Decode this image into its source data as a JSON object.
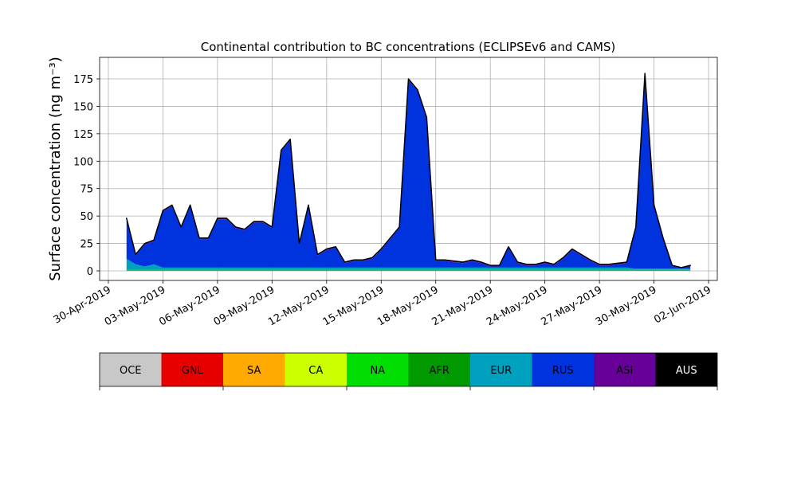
{
  "chart_data": {
    "type": "stacked_area",
    "title": "Continental contribution to BC concentrations (ECLIPSEv6 and CAMS)",
    "y_label": "Surface concentration (ng m⁻³)",
    "x": [
      "2019-05-01T00:00",
      "2019-05-01T12:00",
      "2019-05-02T00:00",
      "2019-05-02T12:00",
      "2019-05-03T00:00",
      "2019-05-03T12:00",
      "2019-05-04T00:00",
      "2019-05-04T12:00",
      "2019-05-05T00:00",
      "2019-05-05T12:00",
      "2019-05-06T00:00",
      "2019-05-06T12:00",
      "2019-05-07T00:00",
      "2019-05-07T12:00",
      "2019-05-08T00:00",
      "2019-05-08T12:00",
      "2019-05-09T00:00",
      "2019-05-09T12:00",
      "2019-05-10T00:00",
      "2019-05-10T12:00",
      "2019-05-11T00:00",
      "2019-05-11T12:00",
      "2019-05-12T00:00",
      "2019-05-12T12:00",
      "2019-05-13T00:00",
      "2019-05-13T12:00",
      "2019-05-14T00:00",
      "2019-05-14T12:00",
      "2019-05-15T00:00",
      "2019-05-15T12:00",
      "2019-05-16T00:00",
      "2019-05-16T12:00",
      "2019-05-17T00:00",
      "2019-05-17T12:00",
      "2019-05-18T00:00",
      "2019-05-18T12:00",
      "2019-05-19T00:00",
      "2019-05-19T12:00",
      "2019-05-20T00:00",
      "2019-05-20T12:00",
      "2019-05-21T00:00",
      "2019-05-21T12:00",
      "2019-05-22T00:00",
      "2019-05-22T12:00",
      "2019-05-23T00:00",
      "2019-05-23T12:00",
      "2019-05-24T00:00",
      "2019-05-24T12:00",
      "2019-05-25T00:00",
      "2019-05-25T12:00",
      "2019-05-26T00:00",
      "2019-05-26T12:00",
      "2019-05-27T00:00",
      "2019-05-27T12:00",
      "2019-05-28T00:00",
      "2019-05-28T12:00",
      "2019-05-29T00:00",
      "2019-05-29T12:00",
      "2019-05-30T00:00",
      "2019-05-30T12:00",
      "2019-05-31T00:00",
      "2019-05-31T12:00",
      "2019-06-01T00:00"
    ],
    "series": [
      {
        "name": "OCE",
        "color": "#c8c8c8",
        "values": [
          0,
          0,
          0,
          0,
          0,
          0,
          0,
          0,
          0,
          0,
          0,
          0,
          0,
          0,
          0,
          0,
          0,
          0,
          0,
          0,
          0,
          0,
          0,
          0,
          0,
          0,
          0,
          0,
          0,
          0,
          0,
          0,
          0,
          0,
          0,
          0,
          0,
          0,
          0,
          0,
          0,
          0,
          0,
          0,
          0,
          0,
          0,
          0,
          0,
          0,
          0,
          0,
          0,
          0,
          0,
          0,
          0,
          0,
          0,
          0,
          0,
          0,
          0
        ]
      },
      {
        "name": "GNL",
        "color": "#e60000",
        "values": [
          0,
          0,
          0,
          0,
          0,
          0,
          0,
          0,
          0,
          0,
          0,
          0,
          0,
          0,
          0,
          0,
          0,
          0,
          0,
          0,
          0,
          0,
          0,
          0,
          0,
          0,
          0,
          0,
          0,
          0,
          0,
          0,
          0,
          0,
          0,
          0,
          0,
          0,
          0,
          0,
          0,
          0,
          0,
          0,
          0,
          0,
          0,
          0,
          0,
          0,
          0,
          0,
          0,
          0,
          0,
          0,
          0,
          0,
          0,
          0,
          0,
          0,
          0
        ]
      },
      {
        "name": "SA",
        "color": "#ffaa00",
        "values": [
          0,
          0,
          0,
          0,
          0,
          0,
          0,
          0,
          0,
          0,
          0,
          0,
          0,
          0,
          0,
          0,
          0,
          0,
          0,
          0,
          0,
          0,
          0,
          0,
          0,
          0,
          0,
          0,
          0,
          0,
          0,
          0,
          0,
          0,
          0,
          0,
          0,
          0,
          0,
          0,
          0,
          0,
          0,
          0,
          0,
          0,
          0,
          0,
          0,
          0,
          0,
          0,
          0,
          0,
          0,
          0,
          0,
          0,
          0,
          0,
          0,
          0,
          0
        ]
      },
      {
        "name": "CA",
        "color": "#ccff00",
        "values": [
          0,
          0,
          0,
          0,
          0,
          0,
          0,
          0,
          0,
          0,
          0,
          0,
          0,
          0,
          0,
          0,
          0,
          0,
          0,
          0,
          0,
          0,
          0,
          0,
          0,
          0,
          0,
          0,
          0,
          0,
          0,
          0,
          0,
          0,
          0,
          0,
          0,
          0,
          0,
          0,
          0,
          0,
          0,
          0,
          0,
          0,
          0,
          0,
          0,
          0,
          0,
          0,
          0,
          0,
          0,
          0,
          0,
          0,
          0,
          0,
          0,
          0,
          0
        ]
      },
      {
        "name": "NA",
        "color": "#00dd00",
        "values": [
          1,
          1,
          1,
          1,
          1,
          1,
          1,
          1,
          1,
          1,
          1,
          1,
          1,
          1,
          1,
          1,
          1,
          1,
          1,
          1,
          1,
          1,
          1,
          1,
          1,
          1,
          1,
          1,
          1,
          1,
          1,
          1,
          1,
          1,
          1,
          1,
          1,
          1,
          1,
          1,
          1,
          1,
          1,
          1,
          1,
          1,
          1,
          1,
          1,
          1,
          1,
          1,
          1,
          1,
          1,
          1,
          1,
          1,
          1,
          1,
          1,
          1,
          1
        ]
      },
      {
        "name": "AFR",
        "color": "#009900",
        "values": [
          0,
          0,
          0,
          0,
          0,
          0,
          0,
          0,
          0,
          0,
          0,
          0,
          0,
          0,
          0,
          0,
          0,
          0,
          0,
          0,
          0,
          0,
          0,
          0,
          0,
          0,
          0,
          0,
          0,
          0,
          0,
          0,
          0,
          0,
          0,
          0,
          0,
          0,
          0,
          0,
          0,
          0,
          0,
          0,
          0,
          0,
          0,
          0,
          0,
          0,
          0,
          0,
          0,
          0,
          0,
          0,
          0,
          0,
          0,
          0,
          0,
          0,
          0
        ]
      },
      {
        "name": "EUR",
        "color": "#00a0bf",
        "values": [
          10,
          5,
          3,
          5,
          2,
          2,
          2,
          2,
          2,
          2,
          2,
          2,
          2,
          2,
          2,
          2,
          2,
          2,
          2,
          2,
          2,
          2,
          2,
          2,
          2,
          2,
          2,
          2,
          2,
          2,
          2,
          2,
          2,
          2,
          2,
          2,
          2,
          2,
          2,
          2,
          2,
          2,
          2,
          2,
          2,
          2,
          2,
          2,
          2,
          2,
          2,
          2,
          2,
          2,
          2,
          2,
          1,
          1,
          1,
          1,
          1,
          1,
          1
        ]
      },
      {
        "name": "RUS",
        "color": "#0033dd",
        "values": [
          36,
          8,
          20,
          21,
          51,
          56,
          36,
          56,
          26,
          26,
          44,
          44,
          36,
          34,
          41,
          41,
          36,
          106,
          116,
          21,
          56,
          11,
          16,
          18,
          4,
          6,
          6,
          8,
          16,
          26,
          36,
          171,
          161,
          136,
          6,
          6,
          5,
          4,
          6,
          4,
          1,
          1,
          18,
          4,
          2,
          2,
          4,
          2,
          8,
          16,
          11,
          6,
          2,
          2,
          3,
          4,
          37,
          177,
          57,
          27,
          2.5,
          0.5,
          2.5
        ]
      },
      {
        "name": "ASI",
        "color": "#660099",
        "values": [
          1,
          1,
          1,
          1,
          1,
          1,
          1,
          1,
          1,
          1,
          1,
          1,
          1,
          1,
          1,
          1,
          1,
          1,
          1,
          1,
          1,
          1,
          1,
          1,
          1,
          1,
          1,
          1,
          1,
          1,
          1,
          1,
          1,
          1,
          1,
          1,
          1,
          1,
          1,
          1,
          1,
          1,
          1,
          1,
          1,
          1,
          1,
          1,
          1,
          1,
          1,
          1,
          1,
          1,
          1,
          1,
          1,
          1,
          1,
          1,
          0.5,
          0.5,
          0.5
        ]
      },
      {
        "name": "AUS",
        "color": "#000000",
        "values": [
          0,
          0,
          0,
          0,
          0,
          0,
          0,
          0,
          0,
          0,
          0,
          0,
          0,
          0,
          0,
          0,
          0,
          0,
          0,
          0,
          0,
          0,
          0,
          0,
          0,
          0,
          0,
          0,
          0,
          0,
          0,
          0,
          0,
          0,
          0,
          0,
          0,
          0,
          0,
          0,
          0,
          0,
          0,
          0,
          0,
          0,
          0,
          0,
          0,
          0,
          0,
          0,
          0,
          0,
          0,
          0,
          0,
          0,
          0,
          0,
          0,
          0,
          0
        ]
      }
    ],
    "xlim": [
      "2019-04-29T12:30",
      "2019-06-02T11:30"
    ],
    "xticks": [
      {
        "value": "2019-04-30T00:00",
        "label": "30-Apr-2019"
      },
      {
        "value": "2019-05-03T00:00",
        "label": "03-May-2019"
      },
      {
        "value": "2019-05-06T00:00",
        "label": "06-May-2019"
      },
      {
        "value": "2019-05-09T00:00",
        "label": "09-May-2019"
      },
      {
        "value": "2019-05-12T00:00",
        "label": "12-May-2019"
      },
      {
        "value": "2019-05-15T00:00",
        "label": "15-May-2019"
      },
      {
        "value": "2019-05-18T00:00",
        "label": "18-May-2019"
      },
      {
        "value": "2019-05-21T00:00",
        "label": "21-May-2019"
      },
      {
        "value": "2019-05-24T00:00",
        "label": "24-May-2019"
      },
      {
        "value": "2019-05-27T00:00",
        "label": "27-May-2019"
      },
      {
        "value": "2019-05-30T00:00",
        "label": "30-May-2019"
      },
      {
        "value": "2019-06-02T00:00",
        "label": "02-Jun-2019"
      }
    ],
    "ylim": [
      -8.7,
      194.6
    ],
    "yticks": [
      0,
      25,
      50,
      75,
      100,
      125,
      150,
      175
    ],
    "grid": true
  }
}
